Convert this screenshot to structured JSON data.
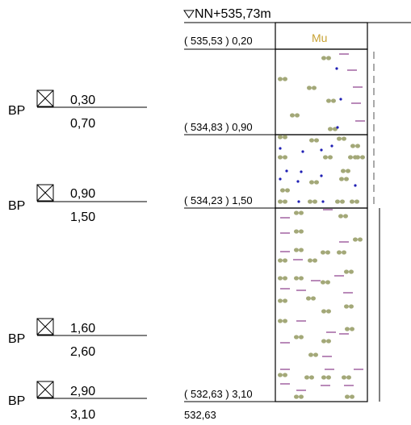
{
  "header": {
    "reference_level": "NN+535,73m",
    "symbol_color": "#c8a233"
  },
  "layer_labels": [
    {
      "text": "( 535,53 ) 0,20"
    },
    {
      "text": "( 534,83 ) 0,90"
    },
    {
      "text": "( 534,23 ) 1,50"
    },
    {
      "text": "( 532,63 ) 3,10"
    }
  ],
  "bottom_elevation": "532,63",
  "top_layer_code": "Mu",
  "samples": [
    {
      "prefix": "BP",
      "top": "0,30",
      "bottom": "0,70"
    },
    {
      "prefix": "BP",
      "top": "0,90",
      "bottom": "1,50"
    },
    {
      "prefix": "BP",
      "top": "1,60",
      "bottom": "2,60"
    },
    {
      "prefix": "BP",
      "top": "2,90",
      "bottom": "3,10"
    }
  ],
  "colors": {
    "pebble": "#a3a878",
    "dot": "#1f1fb4",
    "dash": "#8a3c8a"
  }
}
